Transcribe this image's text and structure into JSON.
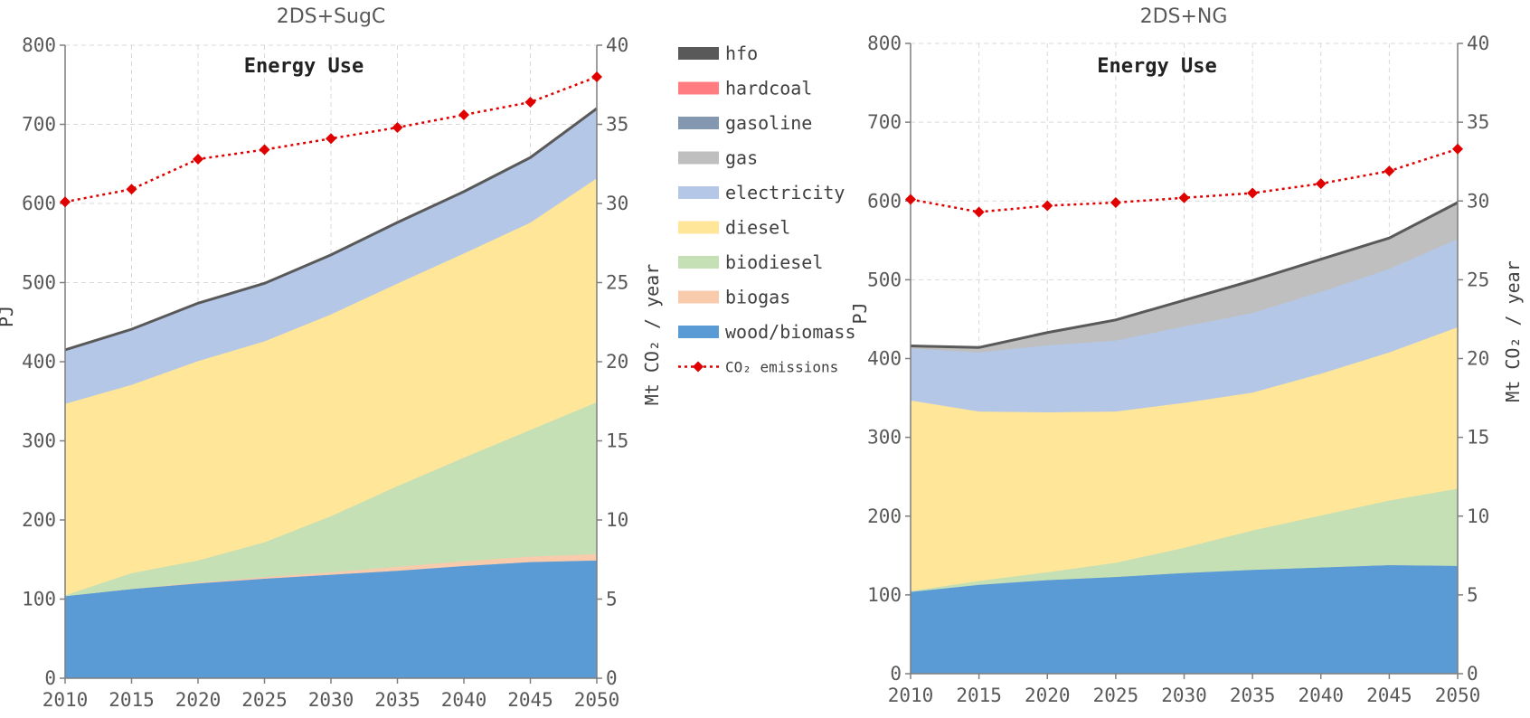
{
  "chart_data": [
    {
      "type": "area",
      "title": "2DS+SugC",
      "annotation": "Energy Use",
      "ylabel": "PJ",
      "y2label": "Mt CO₂ / year",
      "x": [
        2010,
        2015,
        2020,
        2025,
        2030,
        2035,
        2040,
        2045,
        2050
      ],
      "ylim": [
        0,
        800
      ],
      "yticks": [
        0,
        100,
        200,
        300,
        400,
        500,
        600,
        700,
        800
      ],
      "y2lim": [
        0,
        40
      ],
      "y2ticks": [
        0,
        5,
        10,
        15,
        20,
        25,
        30,
        35,
        40
      ],
      "grid": true,
      "stacked": true,
      "series": [
        {
          "name": "wood/biomass",
          "values": [
            104,
            113,
            120,
            126,
            131,
            136,
            142,
            147,
            149
          ]
        },
        {
          "name": "biogas",
          "values": [
            0,
            0,
            1,
            2,
            3,
            5,
            6,
            7,
            8
          ]
        },
        {
          "name": "biodiesel",
          "values": [
            1,
            20,
            28,
            44,
            71,
            102,
            131,
            160,
            192
          ]
        },
        {
          "name": "diesel",
          "values": [
            242,
            238,
            252,
            254,
            255,
            256,
            258,
            262,
            283
          ]
        },
        {
          "name": "electricity",
          "values": [
            68,
            70,
            73,
            73,
            75,
            77,
            78,
            82,
            88
          ]
        },
        {
          "name": "gas",
          "values": [
            0,
            0,
            0,
            0,
            0,
            0,
            0,
            0,
            0
          ]
        },
        {
          "name": "gasoline",
          "values": [
            0,
            0,
            0,
            0,
            0,
            0,
            0,
            0,
            0
          ]
        },
        {
          "name": "hardcoal",
          "values": [
            0,
            0,
            0,
            0,
            0,
            0,
            0,
            0,
            0
          ]
        },
        {
          "name": "hfo",
          "values": [
            0,
            0,
            0,
            0,
            0,
            0,
            0,
            0,
            0
          ]
        }
      ],
      "line_series": {
        "name": "CO₂ emissions",
        "axis": "right",
        "values": [
          30.1,
          30.9,
          32.8,
          33.4,
          34.1,
          34.8,
          35.6,
          36.4,
          38.0
        ]
      }
    },
    {
      "type": "area",
      "title": "2DS+NG",
      "annotation": "Energy Use",
      "ylabel": "PJ",
      "y2label": "Mt CO₂ / year",
      "x": [
        2010,
        2015,
        2020,
        2025,
        2030,
        2035,
        2040,
        2045,
        2050
      ],
      "ylim": [
        0,
        800
      ],
      "yticks": [
        0,
        100,
        200,
        300,
        400,
        500,
        600,
        700,
        800
      ],
      "y2lim": [
        0,
        40
      ],
      "y2ticks": [
        0,
        5,
        10,
        15,
        20,
        25,
        30,
        35,
        40
      ],
      "grid": true,
      "stacked": true,
      "series": [
        {
          "name": "wood/biomass",
          "values": [
            104,
            113,
            119,
            123,
            128,
            132,
            135,
            138,
            137
          ]
        },
        {
          "name": "biogas",
          "values": [
            0,
            0,
            0,
            0,
            0,
            0,
            0,
            0,
            0
          ]
        },
        {
          "name": "biodiesel",
          "values": [
            1,
            5,
            10,
            18,
            32,
            50,
            66,
            82,
            98
          ]
        },
        {
          "name": "diesel",
          "values": [
            242,
            215,
            203,
            192,
            184,
            175,
            180,
            188,
            205
          ]
        },
        {
          "name": "electricity",
          "values": [
            66,
            75,
            85,
            90,
            97,
            101,
            104,
            106,
            112
          ]
        },
        {
          "name": "gas",
          "values": [
            2,
            5,
            15,
            25,
            32,
            40,
            40,
            38,
            45
          ]
        },
        {
          "name": "gasoline",
          "values": [
            0,
            0,
            0,
            0,
            0,
            0,
            0,
            0,
            0
          ]
        },
        {
          "name": "hardcoal",
          "values": [
            0,
            0,
            0,
            0,
            0,
            0,
            0,
            0,
            0
          ]
        },
        {
          "name": "hfo",
          "values": [
            1,
            1,
            1,
            1,
            1,
            1,
            1,
            1,
            1
          ]
        }
      ],
      "line_series": {
        "name": "CO₂ emissions",
        "axis": "right",
        "values": [
          30.1,
          29.3,
          29.7,
          29.9,
          30.2,
          30.5,
          31.1,
          31.9,
          33.3
        ]
      }
    }
  ],
  "legend": {
    "placement": "center",
    "items": [
      {
        "name": "hfo",
        "color": "#595959",
        "kind": "area"
      },
      {
        "name": "hardcoal",
        "color": "#ff7c80",
        "kind": "area"
      },
      {
        "name": "gasoline",
        "color": "#8497b0",
        "kind": "area"
      },
      {
        "name": "gas",
        "color": "#bfbfbf",
        "kind": "area"
      },
      {
        "name": "electricity",
        "color": "#b4c7e7",
        "kind": "area"
      },
      {
        "name": "diesel",
        "color": "#ffe699",
        "kind": "area"
      },
      {
        "name": "biodiesel",
        "color": "#c5e0b4",
        "kind": "area"
      },
      {
        "name": "biogas",
        "color": "#f8cbad",
        "kind": "area"
      },
      {
        "name": "wood/biomass",
        "color": "#5b9bd5",
        "kind": "area"
      },
      {
        "name": "CO₂ emissions",
        "color": "#e00000",
        "kind": "line"
      }
    ]
  },
  "colors": {
    "hfo": "#595959",
    "hardcoal": "#ff7c80",
    "gasoline": "#8497b0",
    "gas": "#bfbfbf",
    "electricity": "#b4c7e7",
    "diesel": "#ffe699",
    "biodiesel": "#c5e0b4",
    "biogas": "#f8cbad",
    "wood/biomass": "#5b9bd5",
    "co2": "#e00000",
    "axis": "#7f7f7f",
    "grid": "#d9d9d9",
    "top_line": "#595959"
  }
}
